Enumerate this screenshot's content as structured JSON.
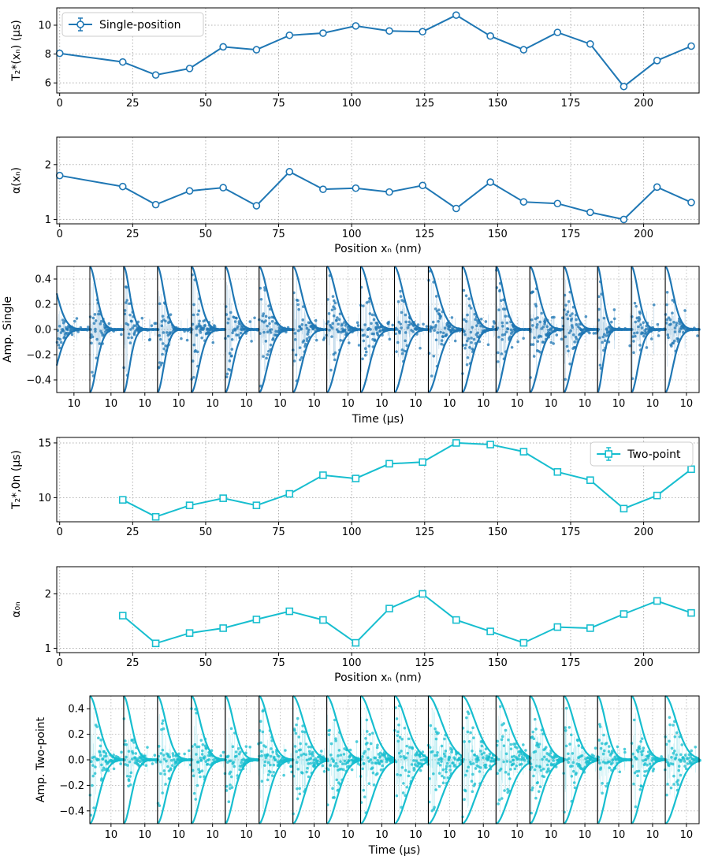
{
  "colors": {
    "single": "#1f77b4",
    "two": "#17becf",
    "grid": "#b0b0b0"
  },
  "chart_data": [
    {
      "id": "p1",
      "type": "line",
      "color": "single",
      "marker": "circle",
      "ylabel": "T₂*(xₙ) (μs)",
      "xlabel": "",
      "xlim": [
        -1,
        219
      ],
      "ylim": [
        5.3,
        11.2
      ],
      "xticks": [
        0,
        25,
        50,
        75,
        100,
        125,
        150,
        175,
        200
      ],
      "yticks": [
        6,
        8,
        10
      ],
      "legend": {
        "label": "Single-position",
        "placement": "top-left"
      },
      "x": [
        0,
        21.6,
        32.9,
        44.5,
        56,
        67.4,
        78.7,
        90.2,
        101.4,
        112.9,
        124.3,
        135.8,
        147.5,
        158.9,
        170.5,
        181.7,
        193.2,
        204.6,
        216.3
      ],
      "y": [
        8.05,
        7.45,
        6.55,
        7.0,
        8.5,
        8.3,
        9.3,
        9.45,
        9.95,
        9.6,
        9.55,
        10.7,
        9.25,
        8.3,
        9.5,
        8.7,
        5.75,
        7.55,
        8.55
      ]
    },
    {
      "id": "p2",
      "type": "line",
      "color": "single",
      "marker": "circle",
      "ylabel": "α(xₙ)",
      "xlabel": "Position xₙ (nm)",
      "xlim": [
        -1,
        219
      ],
      "ylim": [
        0.92,
        2.5
      ],
      "xticks": [
        0,
        25,
        50,
        75,
        100,
        125,
        150,
        175,
        200
      ],
      "yticks": [
        1,
        2
      ],
      "x": [
        0,
        21.6,
        32.9,
        44.5,
        56,
        67.4,
        78.7,
        90.2,
        101.4,
        112.9,
        124.3,
        135.8,
        147.5,
        158.9,
        170.5,
        181.7,
        193.2,
        204.6,
        216.3
      ],
      "y": [
        1.8,
        1.6,
        1.27,
        1.52,
        1.58,
        1.25,
        1.87,
        1.55,
        1.57,
        1.5,
        1.62,
        1.2,
        1.68,
        1.32,
        1.29,
        1.13,
        1.0,
        1.59,
        1.31
      ]
    },
    {
      "id": "p3",
      "type": "scatter",
      "color": "single",
      "ylabel": "Amp. Single",
      "xlabel": "Time (μs)",
      "n_panels": 19,
      "first_panel_trim": 2,
      "x_tick_label": "10",
      "ylim": [
        -0.5,
        0.5
      ],
      "yticks": [
        "0.4",
        "0.2",
        "0.0",
        "−0.2",
        "−0.4"
      ],
      "ytick_values": [
        0.4,
        0.2,
        0.0,
        -0.2,
        -0.4
      ],
      "envelope_T": [
        8.05,
        7.45,
        6.55,
        7.0,
        8.5,
        8.3,
        9.3,
        9.45,
        9.95,
        9.6,
        9.55,
        10.7,
        9.25,
        8.3,
        9.5,
        8.7,
        5.75,
        7.55,
        8.55
      ]
    },
    {
      "id": "p4",
      "type": "line",
      "color": "two",
      "marker": "square",
      "ylabel": "T₂*,0n (μs)",
      "xlabel": "",
      "xlim": [
        -1,
        219
      ],
      "ylim": [
        7.8,
        15.5
      ],
      "xticks": [
        0,
        25,
        50,
        75,
        100,
        125,
        150,
        175,
        200
      ],
      "yticks": [
        10,
        15
      ],
      "legend": {
        "label": "Two-point",
        "placement": "top-right"
      },
      "x": [
        21.6,
        32.9,
        44.5,
        56,
        67.4,
        78.7,
        90.2,
        101.4,
        112.9,
        124.3,
        135.8,
        147.5,
        158.9,
        170.5,
        181.7,
        193.2,
        204.6,
        216.3
      ],
      "y": [
        9.8,
        8.25,
        9.3,
        9.95,
        9.3,
        10.35,
        12.05,
        11.75,
        13.1,
        13.25,
        15.0,
        14.85,
        14.2,
        12.35,
        11.6,
        9.0,
        10.2,
        12.6
      ]
    },
    {
      "id": "p5",
      "type": "line",
      "color": "two",
      "marker": "square",
      "ylabel": "α₀ₙ",
      "xlabel": "Position xₙ (nm)",
      "xlim": [
        -1,
        219
      ],
      "ylim": [
        0.92,
        2.5
      ],
      "xticks": [
        0,
        25,
        50,
        75,
        100,
        125,
        150,
        175,
        200
      ],
      "yticks": [
        1,
        2
      ],
      "x": [
        21.6,
        32.9,
        44.5,
        56,
        67.4,
        78.7,
        90.2,
        101.4,
        112.9,
        124.3,
        135.8,
        147.5,
        158.9,
        170.5,
        181.7,
        193.2,
        204.6,
        216.3
      ],
      "y": [
        1.6,
        1.09,
        1.28,
        1.37,
        1.53,
        1.68,
        1.52,
        1.1,
        1.73,
        2.0,
        1.52,
        1.31,
        1.1,
        1.39,
        1.37,
        1.63,
        1.87,
        1.65
      ]
    },
    {
      "id": "p6",
      "type": "scatter",
      "color": "two",
      "ylabel": "Amp. Two-point",
      "xlabel": "Time (μs)",
      "n_panels": 18,
      "first_panel_trim": 0,
      "x_tick_label": "10",
      "ylim": [
        -0.5,
        0.5
      ],
      "yticks": [
        "0.4",
        "0.2",
        "0.0",
        "−0.2",
        "−0.4"
      ],
      "ytick_values": [
        0.4,
        0.2,
        0.0,
        -0.2,
        -0.4
      ],
      "envelope_T": [
        9.8,
        8.25,
        9.3,
        9.95,
        9.3,
        10.35,
        12.05,
        11.75,
        13.1,
        13.25,
        15.0,
        14.85,
        14.2,
        12.35,
        11.6,
        9.0,
        10.2,
        12.6
      ]
    }
  ]
}
